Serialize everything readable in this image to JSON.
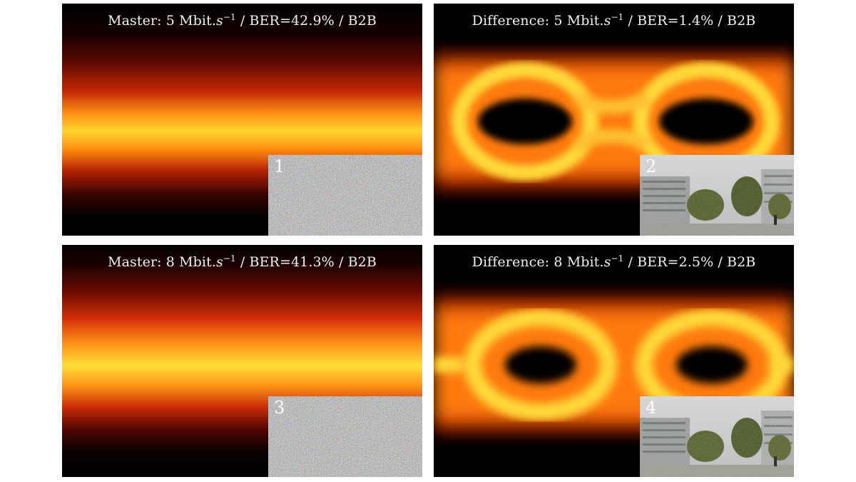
{
  "panels": [
    {
      "id": "master-5",
      "prefix": "Master: 5 Mbit.",
      "unit_var": "s",
      "unit_exp": "−1",
      "suffix": " / BER=42.9% / B2B",
      "inset_label": "1",
      "inset": "noise"
    },
    {
      "id": "difference-5",
      "prefix": "Difference: 5 Mbit.",
      "unit_var": "s",
      "unit_exp": "−1",
      "suffix": " / BER=1.4% / B2B",
      "inset_label": "2",
      "inset": "photo"
    },
    {
      "id": "master-8",
      "prefix": "Master: 8 Mbit.",
      "unit_var": "s",
      "unit_exp": "−1",
      "suffix": " / BER=41.3% / B2B",
      "inset_label": "3",
      "inset": "noise"
    },
    {
      "id": "difference-8",
      "prefix": "Difference: 8 Mbit.",
      "unit_var": "s",
      "unit_exp": "−1",
      "suffix": " / BER=2.5% / B2B",
      "inset_label": "4",
      "inset": "photo"
    }
  ],
  "colors": {
    "dark": "#000000",
    "red": "#d42a08",
    "orange": "#ff8a10",
    "yellow": "#ffe23a",
    "noise_gray": "#7d7d7d",
    "sky": "#c9cbcd",
    "tree": "#4c5a2a"
  }
}
